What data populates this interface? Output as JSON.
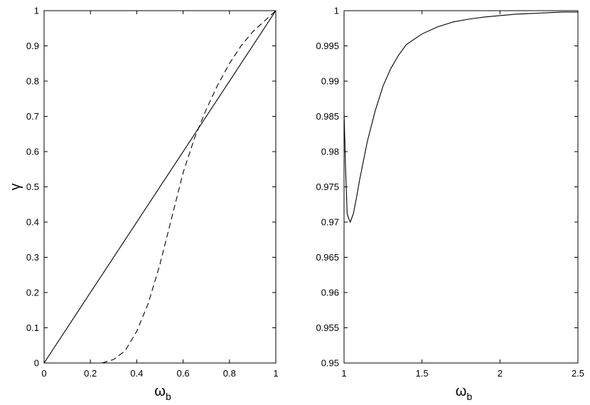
{
  "chart_data": [
    {
      "type": "line",
      "xlabel": "ω",
      "xlabel_sub": "b",
      "ylabel": "γ",
      "xlim": [
        0,
        1
      ],
      "ylim": [
        0,
        1
      ],
      "x_ticks": [
        0,
        0.2,
        0.4,
        0.6,
        0.8,
        1
      ],
      "x_tick_labels": [
        "0",
        "0.2",
        "0.4",
        "0.6",
        "0.8",
        "1"
      ],
      "y_ticks": [
        0,
        0.1,
        0.2,
        0.3,
        0.4,
        0.5,
        0.6,
        0.7,
        0.8,
        0.9,
        1
      ],
      "y_tick_labels": [
        "0",
        "0.1",
        "0.2",
        "0.3",
        "0.4",
        "0.5",
        "0.6",
        "0.7",
        "0.8",
        "0.9",
        "1"
      ],
      "grid": false,
      "series": [
        {
          "style": "solid",
          "color": "#000000",
          "x": [
            0,
            1
          ],
          "y": [
            0,
            1
          ]
        },
        {
          "style": "dashed",
          "color": "#000000",
          "x": [
            0.25,
            0.3,
            0.35,
            0.4,
            0.45,
            0.5,
            0.55,
            0.6,
            0.65,
            0.7,
            0.75,
            0.8,
            0.85,
            0.9,
            0.95,
            1.0
          ],
          "y": [
            0.0,
            0.01,
            0.035,
            0.09,
            0.17,
            0.28,
            0.41,
            0.54,
            0.64,
            0.72,
            0.79,
            0.85,
            0.9,
            0.94,
            0.97,
            1.0
          ]
        }
      ]
    },
    {
      "type": "line",
      "xlabel": "ω",
      "xlabel_sub": "b",
      "ylabel": "",
      "xlim": [
        1,
        2.5
      ],
      "ylim": [
        0.95,
        1
      ],
      "x_ticks": [
        1,
        1.5,
        2,
        2.5
      ],
      "x_tick_labels": [
        "1",
        "1.5",
        "2",
        "2.5"
      ],
      "y_ticks": [
        0.95,
        0.955,
        0.96,
        0.965,
        0.97,
        0.975,
        0.98,
        0.985,
        0.99,
        0.995,
        1
      ],
      "y_tick_labels": [
        "0.95",
        "0.955",
        "0.96",
        "0.965",
        "0.97",
        "0.975",
        "0.98",
        "0.985",
        "0.99",
        "0.995",
        "1"
      ],
      "grid": false,
      "series": [
        {
          "style": "solid",
          "color": "#000000",
          "x": [
            1.0,
            1.01,
            1.02,
            1.03,
            1.04,
            1.06,
            1.08,
            1.1,
            1.15,
            1.2,
            1.25,
            1.3,
            1.35,
            1.4,
            1.5,
            1.6,
            1.7,
            1.8,
            1.9,
            2.0,
            2.1,
            2.2,
            2.3,
            2.4,
            2.5
          ],
          "y": [
            0.9855,
            0.9775,
            0.9712,
            0.9705,
            0.97,
            0.9712,
            0.9735,
            0.976,
            0.9815,
            0.9858,
            0.9893,
            0.9918,
            0.9937,
            0.9952,
            0.9967,
            0.9977,
            0.9984,
            0.9988,
            0.9991,
            0.9993,
            0.9995,
            0.9996,
            0.9997,
            0.9998,
            0.9998
          ]
        }
      ]
    }
  ]
}
